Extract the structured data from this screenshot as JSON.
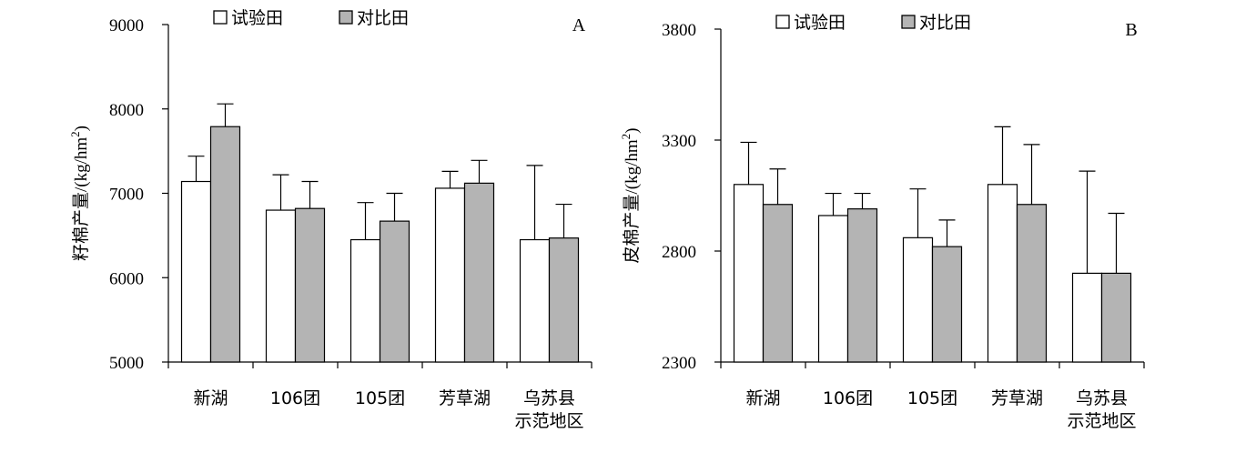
{
  "colors": {
    "trial": "#ffffff",
    "control": "#b4b4b4"
  },
  "chart_data": [
    {
      "type": "bar",
      "panel_label": "A",
      "ylabel_main": "籽棉产量/(kg/hm",
      "ylabel_sup": "2",
      "ylabel_close": ")",
      "ylim": [
        5000,
        9000
      ],
      "yticks": [
        5000,
        6000,
        7000,
        8000,
        9000
      ],
      "ytick_labels": [
        "5000",
        "6000",
        "7000",
        "8000",
        "9000"
      ],
      "categories": [
        [
          "新湖"
        ],
        [
          "106团"
        ],
        [
          "105团"
        ],
        [
          "芳草湖"
        ],
        [
          "乌苏县",
          "示范地区"
        ]
      ],
      "series": [
        {
          "name": "试验田",
          "color_key": "trial",
          "values": [
            7140,
            6800,
            6450,
            7060,
            6450
          ],
          "errors": [
            300,
            420,
            440,
            200,
            880
          ]
        },
        {
          "name": "对比田",
          "color_key": "control",
          "values": [
            7790,
            6820,
            6670,
            7120,
            6470
          ],
          "errors": [
            270,
            320,
            330,
            270,
            400
          ]
        }
      ],
      "legend_position": "top-left"
    },
    {
      "type": "bar",
      "panel_label": "B",
      "ylabel_main": "皮棉产量/(kg/hm",
      "ylabel_sup": "2",
      "ylabel_close": ")",
      "ylim": [
        2300,
        3800
      ],
      "yticks": [
        2300,
        2800,
        3300,
        3800
      ],
      "ytick_labels": [
        "2300",
        "2800",
        "3300",
        "3800"
      ],
      "categories": [
        [
          "新湖"
        ],
        [
          "106团"
        ],
        [
          "105团"
        ],
        [
          "芳草湖"
        ],
        [
          "乌苏县",
          "示范地区"
        ]
      ],
      "series": [
        {
          "name": "试验田",
          "color_key": "trial",
          "values": [
            3100,
            2960,
            2860,
            3100,
            2700
          ],
          "errors": [
            190,
            100,
            220,
            260,
            460
          ]
        },
        {
          "name": "对比田",
          "color_key": "control",
          "values": [
            3010,
            2990,
            2820,
            3010,
            2700
          ],
          "errors": [
            160,
            70,
            120,
            270,
            270
          ]
        }
      ],
      "legend_position": "top-left"
    }
  ]
}
